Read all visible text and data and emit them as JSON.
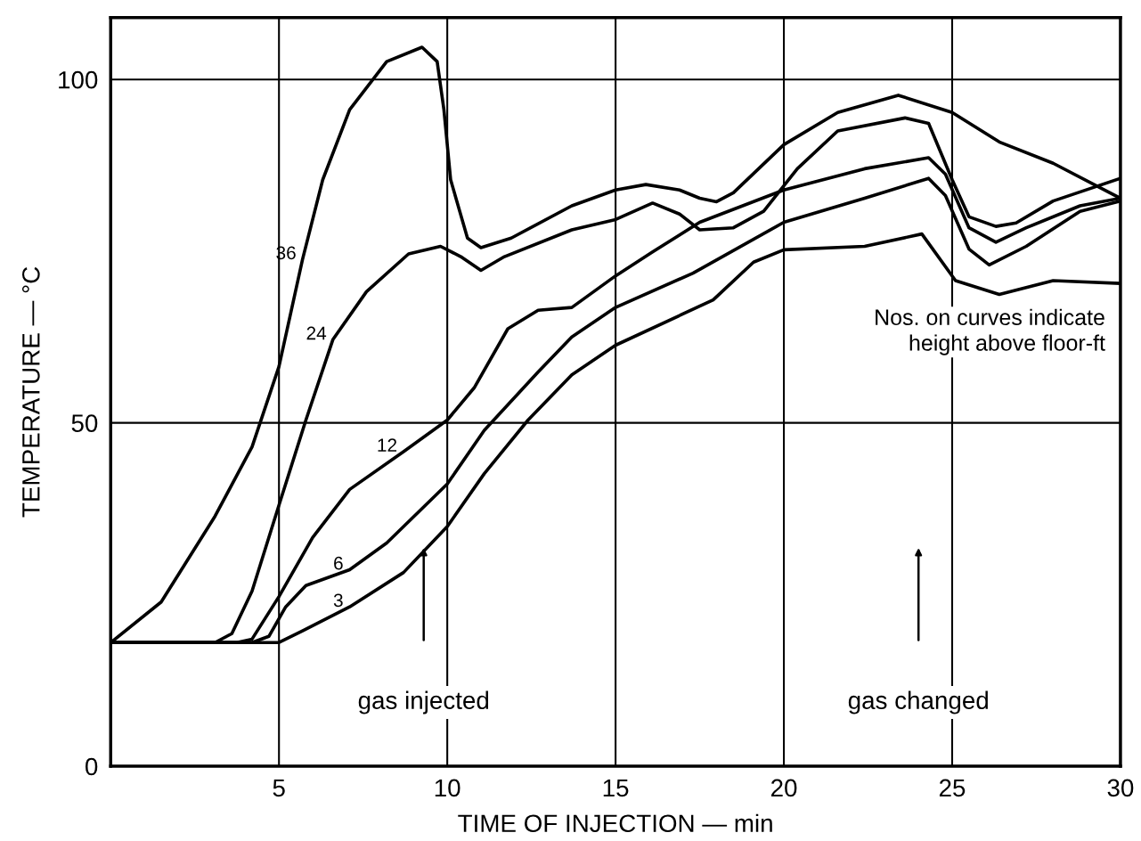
{
  "chart_data": {
    "type": "line",
    "xlabel": "TIME OF INJECTION — min",
    "ylabel": "TEMPERATURE — °C",
    "xlim": [
      0,
      30
    ],
    "xticks": [
      5,
      10,
      15,
      20,
      25,
      30
    ],
    "ylim": [
      0,
      109
    ],
    "yticks": [
      0,
      50,
      100
    ],
    "grid": true,
    "legend": false,
    "marker": "none",
    "line_style": "solid",
    "annotations": [
      "gas injected",
      "gas changed",
      "Nos. on curves indicate\nheight above floor-ft"
    ],
    "series": [
      {
        "name": "36",
        "color": "#000000",
        "x": [
          0,
          1.5,
          3.1,
          4.2,
          5.0,
          5.7,
          6.3,
          7.1,
          8.2,
          9.25,
          9.7,
          9.9,
          10.1,
          10.6,
          11.0,
          11.9,
          13.7,
          15,
          15.9,
          16.9,
          17.5,
          18.0,
          18.5,
          20.0,
          21.6,
          23.4,
          25.0,
          26.4,
          28.0,
          30
        ],
        "values": [
          18,
          23.9,
          36.4,
          46.5,
          58.2,
          73.8,
          85.4,
          95.6,
          102.6,
          104.7,
          102.6,
          95.6,
          85.4,
          76.9,
          75.5,
          76.9,
          81.6,
          83.9,
          84.7,
          83.9,
          82.7,
          82.2,
          83.5,
          90.5,
          95.2,
          97.7,
          95.2,
          90.9,
          87.8,
          82.7
        ]
      },
      {
        "name": "24",
        "color": "#000000",
        "x": [
          0,
          3.1,
          3.6,
          4.2,
          5.0,
          5.8,
          6.6,
          7.6,
          8.85,
          9.8,
          10.4,
          11.0,
          11.7,
          13.7,
          15,
          16.1,
          16.9,
          17.5,
          18.5,
          19.4,
          20.4,
          21.6,
          23.6,
          24.3,
          25.0,
          25.5,
          26.3,
          26.9,
          28.0,
          30
        ],
        "values": [
          18,
          18,
          19.3,
          25.5,
          38,
          50.4,
          62.1,
          69.1,
          74.6,
          75.7,
          74.2,
          72.2,
          74.2,
          78.1,
          79.6,
          82,
          80.4,
          78.1,
          78.4,
          80.8,
          87,
          92.5,
          94.4,
          93.6,
          85.4,
          80,
          78.6,
          79.1,
          82.3,
          85.6
        ]
      },
      {
        "name": "12",
        "color": "#000000",
        "x": [
          0,
          3.75,
          4.2,
          5.0,
          6.0,
          7.1,
          8.7,
          10.0,
          10.8,
          11.8,
          12.7,
          13.7,
          15,
          16.1,
          17.5,
          20.0,
          22.4,
          24.3,
          24.8,
          25.5,
          26.3,
          27.2,
          28.8,
          30
        ],
        "values": [
          18,
          18,
          18.5,
          24.7,
          33.3,
          40.3,
          45.8,
          50.4,
          55.1,
          63.7,
          66.4,
          66.8,
          71.4,
          74.9,
          79.2,
          83.9,
          87,
          88.6,
          86.2,
          78.4,
          76.3,
          78.4,
          81.6,
          82.7
        ]
      },
      {
        "name": "6",
        "color": "#000000",
        "x": [
          0,
          4.2,
          4.7,
          5.2,
          5.8,
          7.1,
          8.2,
          10.0,
          11.1,
          12.7,
          13.7,
          15,
          17.3,
          20.0,
          22.4,
          24.3,
          24.8,
          25.5,
          26.1,
          27.2,
          28.8,
          30
        ],
        "values": [
          18,
          18,
          18.9,
          23.2,
          26.3,
          28.6,
          32.5,
          41.1,
          48.9,
          57.4,
          62.5,
          66.8,
          71.8,
          79.2,
          82.7,
          85.6,
          83.1,
          75.3,
          73,
          75.7,
          80.8,
          82.3
        ]
      },
      {
        "name": "3",
        "color": "#000000",
        "x": [
          0,
          5.0,
          5.7,
          7.1,
          8.7,
          10.0,
          11.1,
          12.4,
          13.7,
          15,
          17.9,
          19.1,
          20,
          22.4,
          24.1,
          25.1,
          26.4,
          28,
          30
        ],
        "values": [
          18,
          18,
          19.7,
          23.2,
          28.2,
          34.9,
          42.6,
          50.4,
          57,
          61.3,
          67.9,
          73.4,
          75.2,
          75.7,
          77.5,
          70.7,
          68.7,
          70.7,
          70.3
        ]
      }
    ]
  }
}
